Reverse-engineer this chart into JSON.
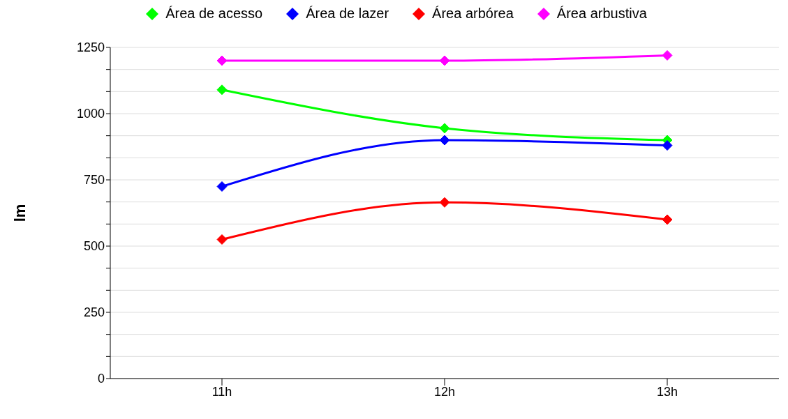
{
  "chart_data": {
    "type": "line",
    "ylabel": "lm",
    "categories": [
      "11h",
      "12h",
      "13h"
    ],
    "series": [
      {
        "name": "Área de acesso",
        "color": "#00ff00",
        "values": [
          1090,
          945,
          900
        ]
      },
      {
        "name": "Área de lazer",
        "color": "#0000ff",
        "values": [
          725,
          900,
          880
        ]
      },
      {
        "name": "Área arbórea",
        "color": "#ff0000",
        "values": [
          525,
          665,
          600
        ]
      },
      {
        "name": "Área arbustiva",
        "color": "#ff00ff",
        "values": [
          1200,
          1200,
          1220
        ]
      }
    ],
    "ylim": [
      0,
      1250
    ],
    "yticks": [
      0,
      {
        "value": 83.33,
        "label": null
      },
      {
        "value": 166.67,
        "label": null
      },
      250,
      {
        "value": 333.33,
        "label": null
      },
      {
        "value": 416.67,
        "label": null
      },
      500,
      {
        "value": 583.33,
        "label": null
      },
      {
        "value": 666.67,
        "label": null
      },
      750,
      {
        "value": 833.33,
        "label": null
      },
      {
        "value": 916.67,
        "label": null
      },
      1000,
      {
        "value": 1083.33,
        "label": null
      },
      {
        "value": 1166.67,
        "label": null
      },
      1250
    ],
    "grid": "y",
    "legend": "top",
    "marker": "diamond",
    "line_style": "solid"
  }
}
